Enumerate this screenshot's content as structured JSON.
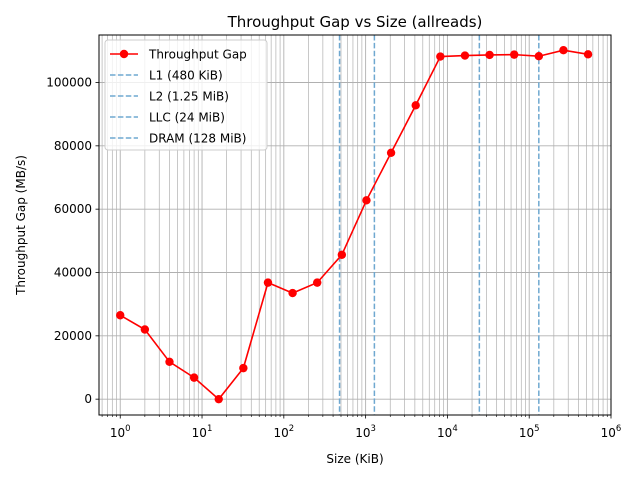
{
  "chart_data": {
    "type": "line",
    "title": "Throughput Gap vs Size (allreads)",
    "xlabel": "Size (KiB)",
    "ylabel": "Throughput Gap (MB/s)",
    "x_scale": "log",
    "xlim": [
      0.55,
      1000000
    ],
    "ylim": [
      -5000,
      115000
    ],
    "grid": "both (major and minor)",
    "legend_position": "upper-left",
    "x_tick_labels": [
      {
        "base": "10",
        "exp": "0",
        "value": 1
      },
      {
        "base": "10",
        "exp": "1",
        "value": 10
      },
      {
        "base": "10",
        "exp": "2",
        "value": 100
      },
      {
        "base": "10",
        "exp": "3",
        "value": 1000
      },
      {
        "base": "10",
        "exp": "4",
        "value": 10000
      },
      {
        "base": "10",
        "exp": "5",
        "value": 100000
      },
      {
        "base": "10",
        "exp": "6",
        "value": 1000000
      }
    ],
    "y_ticks": [
      0,
      20000,
      40000,
      60000,
      80000,
      100000
    ],
    "y_tick_labels": [
      "0",
      "20000",
      "40000",
      "60000",
      "80000",
      "100000"
    ],
    "series": [
      {
        "name": "Throughput Gap",
        "color": "#ff0000",
        "marker": "circle",
        "x": [
          1,
          2,
          4,
          8,
          16,
          32,
          64,
          128,
          256,
          512,
          1024,
          2048,
          4096,
          8192,
          16384,
          32768,
          65536,
          131072,
          262144,
          524288
        ],
        "y": [
          26500,
          22000,
          11800,
          6800,
          0,
          9800,
          36800,
          33500,
          36800,
          45600,
          62800,
          77800,
          92800,
          108200,
          108500,
          108700,
          108800,
          108300,
          110200,
          108900
        ]
      }
    ],
    "vlines": [
      {
        "name": "L1 (480 KiB)",
        "x": 480,
        "color": "#6fa8d0",
        "style": "dashed"
      },
      {
        "name": "L2 (1.25 MiB)",
        "x": 1280,
        "color": "#6fa8d0",
        "style": "dashed"
      },
      {
        "name": "LLC (24 MiB)",
        "x": 24576,
        "color": "#6fa8d0",
        "style": "dashed"
      },
      {
        "name": "DRAM (128 MiB)",
        "x": 131072,
        "color": "#6fa8d0",
        "style": "dashed"
      }
    ]
  }
}
